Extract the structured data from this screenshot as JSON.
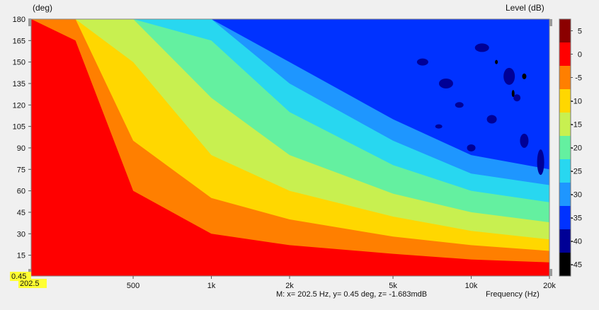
{
  "chart_data": {
    "type": "heatmap",
    "subtype": "contour-map",
    "title": "",
    "ylabel": "(deg)",
    "xlabel": "Frequency  (Hz)",
    "colorbar_label": "Level  (dB)",
    "x_scale": "log",
    "xlim": [
      202.5,
      20000
    ],
    "ylim": [
      0.45,
      180
    ],
    "x_ticks": [
      {
        "value": 500,
        "label": "500"
      },
      {
        "value": 1000,
        "label": "1k"
      },
      {
        "value": 2000,
        "label": "2k"
      },
      {
        "value": 5000,
        "label": "5k"
      },
      {
        "value": 10000,
        "label": "10k"
      },
      {
        "value": 20000,
        "label": "20k"
      }
    ],
    "y_ticks": [
      {
        "value": 180,
        "label": "180"
      },
      {
        "value": 165,
        "label": "165"
      },
      {
        "value": 150,
        "label": "150"
      },
      {
        "value": 135,
        "label": "135"
      },
      {
        "value": 120,
        "label": "120"
      },
      {
        "value": 105,
        "label": "105"
      },
      {
        "value": 90,
        "label": "90"
      },
      {
        "value": 75,
        "label": "75"
      },
      {
        "value": 60,
        "label": "60"
      },
      {
        "value": 45,
        "label": "45"
      },
      {
        "value": 30,
        "label": "30"
      },
      {
        "value": 15,
        "label": "15"
      }
    ],
    "colorbar_ticks": [
      {
        "value": 5,
        "label": "5"
      },
      {
        "value": 0,
        "label": "0"
      },
      {
        "value": -5,
        "label": "-5"
      },
      {
        "value": -10,
        "label": "-10"
      },
      {
        "value": -15,
        "label": "-15"
      },
      {
        "value": -20,
        "label": "-20"
      },
      {
        "value": -25,
        "label": "-25"
      },
      {
        "value": -30,
        "label": "-30"
      },
      {
        "value": -35,
        "label": "-35"
      },
      {
        "value": -40,
        "label": "-40"
      },
      {
        "value": -45,
        "label": "-45"
      }
    ],
    "colorbar_range": [
      -47.5,
      7.5
    ],
    "levels": [
      {
        "min": 2.5,
        "max": 7.5,
        "color": "#8b0000"
      },
      {
        "min": -2.5,
        "max": 2.5,
        "color": "#ff0000"
      },
      {
        "min": -7.5,
        "max": -2.5,
        "color": "#ff7f00"
      },
      {
        "min": -12.5,
        "max": -7.5,
        "color": "#ffd700"
      },
      {
        "min": -17.5,
        "max": -12.5,
        "color": "#c8f050"
      },
      {
        "min": -22.5,
        "max": -17.5,
        "color": "#64f0a0"
      },
      {
        "min": -27.5,
        "max": -22.5,
        "color": "#28d7f0"
      },
      {
        "min": -32.5,
        "max": -27.5,
        "color": "#1e96ff"
      },
      {
        "min": -37.5,
        "max": -32.5,
        "color": "#0032ff"
      },
      {
        "min": -42.5,
        "max": -37.5,
        "color": "#000096"
      },
      {
        "min": -47.5,
        "max": -42.5,
        "color": "#000000"
      }
    ],
    "contour_boundaries_deg_by_freq": {
      "freqs_hz": [
        202.5,
        300,
        500,
        1000,
        2000,
        5000,
        10000,
        20000
      ],
      "level_0_to_-5_bottom": [
        180,
        165,
        60,
        30,
        22,
        16,
        12,
        10
      ],
      "level_-5_to_-10_bottom": [
        180,
        180,
        95,
        55,
        40,
        28,
        22,
        18
      ],
      "level_-10_to_-15_bottom": [
        180,
        180,
        150,
        85,
        60,
        42,
        32,
        26
      ],
      "level_-15_to_-20_bottom": [
        180,
        180,
        180,
        125,
        85,
        58,
        45,
        38
      ],
      "level_-20_to_-25_bottom": [
        180,
        180,
        180,
        165,
        115,
        78,
        60,
        52
      ]
    }
  },
  "cursor": {
    "x_value": "202.5",
    "y_value": "0.45",
    "readout": "M:  x= 202.5 Hz,  y= 0.45 deg,  z= -1.683mdB"
  }
}
